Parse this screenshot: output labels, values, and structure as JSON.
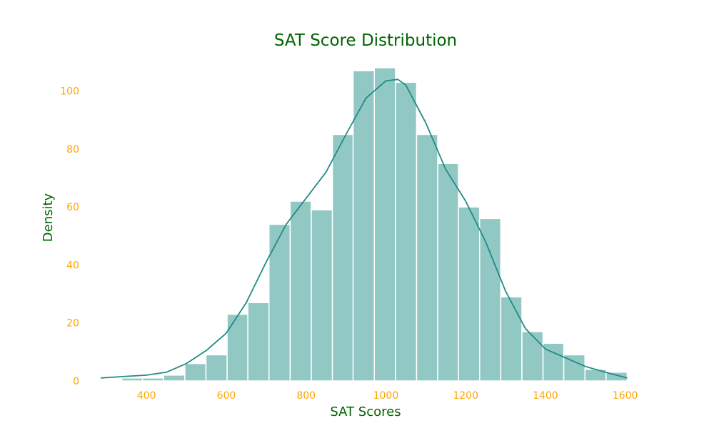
{
  "chart_data": {
    "type": "bar",
    "subtype": "histogram-with-kde",
    "title": "SAT Score Distribution",
    "xlabel": "SAT Scores",
    "ylabel": "Density",
    "xlim": [
      260,
      1640
    ],
    "ylim": [
      0,
      108
    ],
    "xticks": [
      400,
      600,
      800,
      1000,
      1200,
      1400,
      1600
    ],
    "yticks": [
      0,
      20,
      40,
      60,
      80,
      100
    ],
    "grid": false,
    "bins": [
      {
        "x0": 285,
        "x1": 338,
        "count": 0
      },
      {
        "x0": 338,
        "x1": 390,
        "count": 1
      },
      {
        "x0": 390,
        "x1": 443,
        "count": 1
      },
      {
        "x0": 443,
        "x1": 496,
        "count": 2
      },
      {
        "x0": 496,
        "x1": 549,
        "count": 6
      },
      {
        "x0": 549,
        "x1": 602,
        "count": 9
      },
      {
        "x0": 602,
        "x1": 654,
        "count": 23
      },
      {
        "x0": 654,
        "x1": 707,
        "count": 27
      },
      {
        "x0": 707,
        "x1": 760,
        "count": 54
      },
      {
        "x0": 760,
        "x1": 813,
        "count": 62
      },
      {
        "x0": 813,
        "x1": 866,
        "count": 59
      },
      {
        "x0": 866,
        "x1": 918,
        "count": 85
      },
      {
        "x0": 918,
        "x1": 971,
        "count": 107
      },
      {
        "x0": 971,
        "x1": 1024,
        "count": 108
      },
      {
        "x0": 1024,
        "x1": 1077,
        "count": 103
      },
      {
        "x0": 1077,
        "x1": 1130,
        "count": 85
      },
      {
        "x0": 1130,
        "x1": 1182,
        "count": 75
      },
      {
        "x0": 1182,
        "x1": 1235,
        "count": 60
      },
      {
        "x0": 1235,
        "x1": 1288,
        "count": 56
      },
      {
        "x0": 1288,
        "x1": 1341,
        "count": 29
      },
      {
        "x0": 1341,
        "x1": 1394,
        "count": 17
      },
      {
        "x0": 1394,
        "x1": 1446,
        "count": 13
      },
      {
        "x0": 1446,
        "x1": 1499,
        "count": 9
      },
      {
        "x0": 1499,
        "x1": 1552,
        "count": 4
      },
      {
        "x0": 1552,
        "x1": 1605,
        "count": 3
      }
    ],
    "kde": {
      "x": [
        285,
        340,
        400,
        450,
        500,
        550,
        600,
        650,
        700,
        750,
        800,
        850,
        900,
        950,
        1000,
        1030,
        1050,
        1100,
        1150,
        1200,
        1250,
        1300,
        1350,
        1400,
        1450,
        1500,
        1550,
        1605
      ],
      "y": [
        1,
        1.5,
        2,
        3,
        6,
        10.5,
        16.5,
        27,
        41,
        54,
        63,
        72,
        85,
        97.5,
        103.5,
        104,
        102,
        89,
        73,
        62,
        48,
        31,
        18,
        11,
        8,
        5,
        3,
        1
      ]
    },
    "colors": {
      "bar_fill": "#92C8C4",
      "kde_line": "#1F8B86",
      "title": "#006400",
      "labels": "#006400",
      "ticks": "#FFA500"
    }
  }
}
